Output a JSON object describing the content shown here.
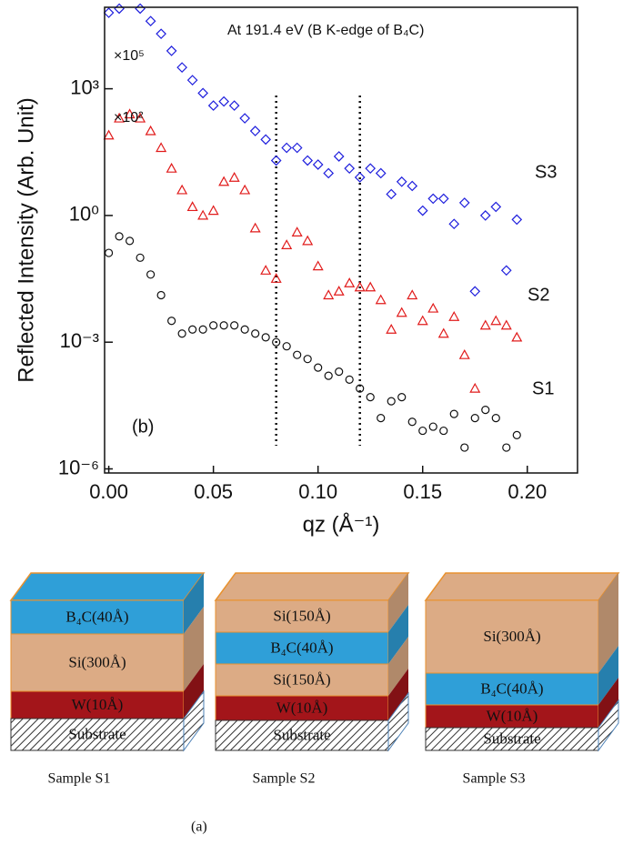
{
  "chart_data": {
    "type": "scatter",
    "y_label": "Reflected Intensity (Arb. Unit)",
    "x_label": "qz (Å⁻¹)",
    "annotations": [
      "At 191.4 eV (B K-edge of B₄C)",
      "×10⁵",
      "×10²",
      "S3",
      "S2",
      "S1",
      "(b)"
    ],
    "log_y": true,
    "xlim": [
      -0.002,
      0.224
    ],
    "ylim": [
      8e-07,
      85000
    ],
    "xticks": [
      {
        "value": 0,
        "label": "0.00"
      },
      {
        "value": 0.05,
        "label": "0.05"
      },
      {
        "value": 0.1,
        "label": "0.10"
      },
      {
        "value": 0.15,
        "label": "0.15"
      },
      {
        "value": 0.2,
        "label": "0.20"
      }
    ],
    "yticks": [
      {
        "value": 1e-06,
        "label": "10⁻⁶"
      },
      {
        "value": 0.001,
        "label": "10⁻³"
      },
      {
        "value": 1,
        "label": "10⁰"
      },
      {
        "value": 1000,
        "label": "10³"
      }
    ],
    "vlines": [
      0.08,
      0.12
    ],
    "x": [
      0,
      0.005,
      0.01,
      0.015,
      0.02,
      0.025,
      0.03,
      0.035,
      0.04,
      0.045,
      0.05,
      0.055,
      0.06,
      0.065,
      0.07,
      0.075,
      0.08,
      0.085,
      0.09,
      0.095,
      0.1,
      0.105,
      0.11,
      0.115,
      0.12,
      0.125,
      0.13,
      0.135,
      0.14,
      0.145,
      0.15,
      0.155,
      0.16,
      0.165,
      0.17,
      0.175,
      0.18,
      0.185,
      0.19,
      0.195
    ],
    "series": [
      {
        "name": "S3",
        "color": "#1f1fdd",
        "marker": "diamond",
        "values": [
          63000,
          79000,
          100000,
          79000,
          40000,
          20000,
          7900,
          3200,
          1600,
          790,
          400,
          500,
          400,
          200,
          100,
          63,
          20,
          40,
          40,
          20,
          16,
          10,
          25,
          13,
          8,
          13,
          10,
          3.2,
          6.3,
          5,
          1.3,
          2.5,
          2.5,
          0.63,
          2,
          0.016,
          1,
          1.6,
          0.05,
          0.8
        ]
      },
      {
        "name": "S2",
        "color": "#e11b1b",
        "marker": "triangle",
        "values": [
          79,
          200,
          250,
          200,
          100,
          40,
          13,
          4,
          1.6,
          1,
          1.3,
          6.3,
          7.9,
          4,
          0.5,
          0.05,
          0.032,
          0.2,
          0.4,
          0.25,
          0.063,
          0.013,
          0.016,
          0.025,
          0.02,
          0.02,
          0.01,
          0.002,
          0.005,
          0.013,
          0.0032,
          0.0063,
          0.0016,
          0.004,
          0.0005,
          8e-05,
          0.0025,
          0.0032,
          0.0025,
          0.0013
        ]
      },
      {
        "name": "S1",
        "color": "#111111",
        "marker": "circle",
        "values": [
          0.13,
          0.32,
          0.25,
          0.1,
          0.04,
          0.013,
          0.0032,
          0.0016,
          0.002,
          0.002,
          0.0025,
          0.0025,
          0.0025,
          0.002,
          0.0016,
          0.0013,
          0.001,
          0.0008,
          0.0005,
          0.0004,
          0.00025,
          0.00016,
          0.0002,
          0.00013,
          8e-05,
          5e-05,
          1.6e-05,
          4e-05,
          5e-05,
          1.3e-05,
          8e-06,
          1e-05,
          8e-06,
          2e-05,
          3.2e-06,
          1.6e-05,
          2.5e-05,
          1.6e-05,
          3.2e-06,
          6.3e-06
        ]
      }
    ]
  },
  "diagram": {
    "label": "(a)",
    "samples": [
      {
        "caption": "Sample S1",
        "layers": [
          {
            "label": "B₄C(40Å)",
            "color": "#2f9fd8"
          },
          {
            "label": "Si(300Å)",
            "color": "#dcab85"
          },
          {
            "label": "W(10Å)",
            "color": "#a3151a"
          },
          {
            "label": "Substrate",
            "color": "#ffffff",
            "hatched": true
          }
        ]
      },
      {
        "caption": "Sample S2",
        "layers": [
          {
            "label": "Si(150Å)",
            "color": "#dcab85"
          },
          {
            "label": "B₄C(40Å)",
            "color": "#2f9fd8"
          },
          {
            "label": "Si(150Å)",
            "color": "#dcab85"
          },
          {
            "label": "W(10Å)",
            "color": "#a3151a"
          },
          {
            "label": "Substrate",
            "color": "#ffffff",
            "hatched": true
          }
        ]
      },
      {
        "caption": "Sample S3",
        "layers": [
          {
            "label": "Si(300Å)",
            "color": "#dcab85"
          },
          {
            "label": "B₄C(40Å)",
            "color": "#2f9fd8"
          },
          {
            "label": "W(10Å)",
            "color": "#a3151a"
          },
          {
            "label": "Substrate",
            "color": "#ffffff",
            "hatched": true
          }
        ]
      }
    ]
  }
}
